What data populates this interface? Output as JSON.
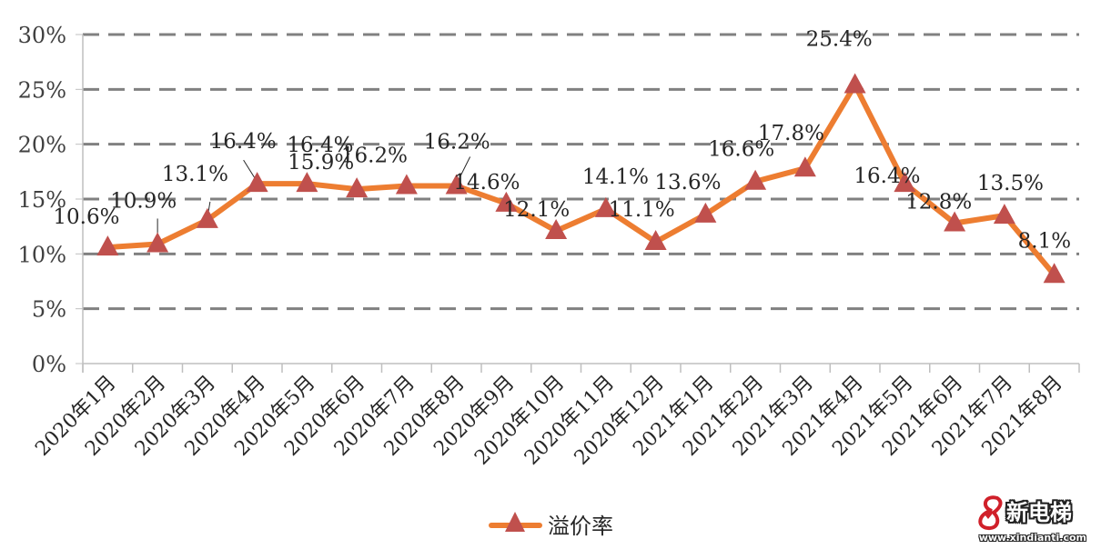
{
  "chart_data": {
    "type": "line",
    "title": "",
    "xlabel": "",
    "ylabel": "",
    "categories": [
      "2020年1月",
      "2020年2月",
      "2020年3月",
      "2020年4月",
      "2020年5月",
      "2020年6月",
      "2020年7月",
      "2020年8月",
      "2020年9月",
      "2020年10月",
      "2020年11月",
      "2020年12月",
      "2021年1月",
      "2021年2月",
      "2021年3月",
      "2021年4月",
      "2021年5月",
      "2021年6月",
      "2021年7月",
      "2021年8月"
    ],
    "series": [
      {
        "name": "溢价率",
        "values": [
          10.6,
          10.9,
          13.1,
          16.4,
          16.4,
          15.9,
          16.2,
          16.2,
          14.6,
          12.1,
          14.1,
          11.1,
          13.6,
          16.6,
          17.8,
          25.4,
          16.4,
          12.8,
          13.5,
          8.1
        ],
        "labels": [
          "10.6%",
          "10.9%",
          "13.1%",
          "16.4%",
          "16.4%",
          "15.9%",
          "16.2%",
          "16.2%",
          "14.6%",
          "12.1%",
          "14.1%",
          "11.1%",
          "13.6%",
          "16.6%",
          "17.8%",
          "25.4%",
          "16.4%",
          "12.8%",
          "13.5%",
          "8.1%"
        ],
        "line_color": "#ED7D31",
        "marker": "triangle",
        "marker_color": "#C0504D"
      }
    ],
    "ylim": [
      0,
      30
    ],
    "yticks": [
      "0%",
      "5%",
      "10%",
      "15%",
      "20%",
      "25%",
      "30%"
    ],
    "grid": true,
    "grid_style": "dashed",
    "legend_position": "bottom"
  },
  "legend": {
    "label": "溢价率"
  },
  "watermark": {
    "brand": "新电梯",
    "url": "www.xindianti.com"
  }
}
